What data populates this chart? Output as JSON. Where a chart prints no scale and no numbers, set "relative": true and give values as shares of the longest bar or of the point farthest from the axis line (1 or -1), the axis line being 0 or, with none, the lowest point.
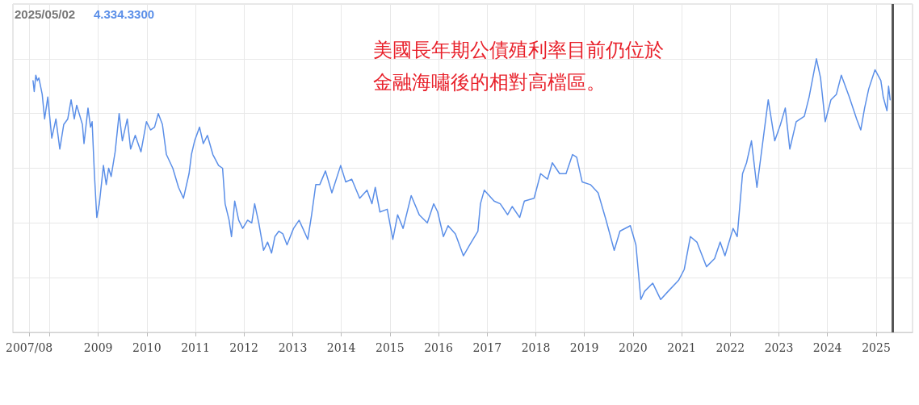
{
  "chart_data": {
    "type": "line",
    "relative": true,
    "grid": true,
    "marker": "none",
    "annotations": [
      "2025/05/02",
      "4.334.3300",
      "美國長年期公債殖利率目前仍位於",
      "金融海嘯後的相對高檔區。"
    ],
    "xlim": [
      "2007-04-01",
      "2025-10-01"
    ],
    "xticks": [
      {
        "value": "2007-08-01",
        "label": "2007/08"
      },
      {
        "value": "2008-01-01",
        "label": null
      },
      {
        "value": "2009-01-01",
        "label": "2009"
      },
      {
        "value": "2010-01-01",
        "label": "2010"
      },
      {
        "value": "2011-01-01",
        "label": "2011"
      },
      {
        "value": "2012-01-01",
        "label": "2012"
      },
      {
        "value": "2013-01-01",
        "label": "2013"
      },
      {
        "value": "2014-01-01",
        "label": "2014"
      },
      {
        "value": "2015-01-01",
        "label": "2015"
      },
      {
        "value": "2016-01-01",
        "label": "2016"
      },
      {
        "value": "2017-01-01",
        "label": "2017"
      },
      {
        "value": "2018-01-01",
        "label": "2018"
      },
      {
        "value": "2019-01-01",
        "label": "2019"
      },
      {
        "value": "2020-01-01",
        "label": "2020"
      },
      {
        "value": "2021-01-01",
        "label": "2021"
      },
      {
        "value": "2022-01-01",
        "label": "2022"
      },
      {
        "value": "2023-01-01",
        "label": "2023"
      },
      {
        "value": "2024-01-01",
        "label": "2024"
      },
      {
        "value": "2025-01-01",
        "label": "2025"
      }
    ],
    "ref_lines": [
      {
        "axis": "x",
        "value": "2025-05-02",
        "color": "#555555"
      }
    ],
    "x": [
      "2007-08-30",
      "2007-09-08",
      "2007-09-20",
      "2007-10-02",
      "2007-10-13",
      "2007-11-07",
      "2007-11-25",
      "2007-12-19",
      "2008-01-18",
      "2008-02-18",
      "2008-03-18",
      "2008-04-17",
      "2008-05-17",
      "2008-06-11",
      "2008-07-05",
      "2008-07-23",
      "2008-09-04",
      "2008-09-16",
      "2008-10-16",
      "2008-11-04",
      "2008-11-16",
      "2008-12-03",
      "2008-12-21",
      "2009-01-09",
      "2009-02-09",
      "2009-03-02",
      "2009-03-20",
      "2009-04-08",
      "2009-05-08",
      "2009-06-07",
      "2009-07-01",
      "2009-08-07",
      "2009-09-01",
      "2009-10-06",
      "2009-11-18",
      "2009-12-29",
      "2010-01-29",
      "2010-02-28",
      "2010-03-28",
      "2010-04-28",
      "2010-05-28",
      "2010-07-15",
      "2010-08-27",
      "2010-10-03",
      "2010-11-14",
      "2010-12-02",
      "2010-12-26",
      "2011-02-01",
      "2011-03-01",
      "2011-04-01",
      "2011-05-12",
      "2011-06-24",
      "2011-07-24",
      "2011-08-12",
      "2011-09-11",
      "2011-09-29",
      "2011-10-23",
      "2011-11-22",
      "2011-12-22",
      "2012-01-28",
      "2012-02-28",
      "2012-03-21",
      "2012-04-21",
      "2012-05-27",
      "2012-06-26",
      "2012-07-26",
      "2012-08-20",
      "2012-09-19",
      "2012-10-19",
      "2012-11-19",
      "2013-01-07",
      "2013-02-18",
      "2013-03-18",
      "2013-04-24",
      "2013-05-23",
      "2013-06-23",
      "2013-07-23",
      "2013-09-04",
      "2013-10-22",
      "2013-12-27",
      "2014-02-03",
      "2014-03-20",
      "2014-05-19",
      "2014-07-13",
      "2014-08-19",
      "2014-09-13",
      "2014-10-18",
      "2014-12-12",
      "2015-01-23",
      "2015-02-28",
      "2015-04-10",
      "2015-06-10",
      "2015-08-09",
      "2015-10-09",
      "2015-11-26",
      "2015-12-26",
      "2016-02-07",
      "2016-03-13",
      "2016-05-07",
      "2016-07-06",
      "2016-08-23",
      "2016-10-23",
      "2016-11-11",
      "2016-12-10",
      "2017-02-22",
      "2017-04-09",
      "2017-06-03",
      "2017-07-08",
      "2017-09-02",
      "2017-10-07",
      "2017-12-19",
      "2018-02-06",
      "2018-03-30",
      "2018-05-05",
      "2018-06-29",
      "2018-08-16",
      "2018-10-04",
      "2018-11-04",
      "2018-12-15",
      "2019-02-15",
      "2019-04-14",
      "2019-06-13",
      "2019-08-13",
      "2019-09-25",
      "2019-12-12",
      "2020-01-23",
      "2020-02-29",
      "2020-03-28",
      "2020-05-28",
      "2020-07-27",
      "2020-09-21",
      "2020-12-08",
      "2021-01-20",
      "2021-03-07",
      "2021-04-25",
      "2021-07-06",
      "2021-09-05",
      "2021-10-17",
      "2021-11-22",
      "2022-01-22",
      "2022-02-22",
      "2022-04-03",
      "2022-05-03",
      "2022-06-09",
      "2022-07-20",
      "2022-10-13",
      "2022-12-01",
      "2023-01-13",
      "2023-02-18",
      "2023-03-24",
      "2023-05-11",
      "2023-07-11",
      "2023-08-16",
      "2023-10-10",
      "2023-11-10",
      "2023-12-15",
      "2024-01-27",
      "2024-03-08",
      "2024-04-14",
      "2024-06-13",
      "2024-08-07",
      "2024-09-07",
      "2024-10-06",
      "2024-11-06",
      "2024-12-23",
      "2025-02-05",
      "2025-02-23",
      "2025-03-23",
      "2025-04-04",
      "2025-04-16"
    ],
    "series": [
      {
        "color": "#5b8fe8",
        "values": [
          0.92,
          0.88,
          0.94,
          0.92,
          0.93,
          0.87,
          0.78,
          0.86,
          0.71,
          0.78,
          0.67,
          0.76,
          0.78,
          0.85,
          0.78,
          0.83,
          0.76,
          0.69,
          0.82,
          0.75,
          0.77,
          0.58,
          0.42,
          0.47,
          0.61,
          0.54,
          0.6,
          0.57,
          0.66,
          0.8,
          0.7,
          0.78,
          0.67,
          0.72,
          0.66,
          0.77,
          0.74,
          0.75,
          0.8,
          0.76,
          0.65,
          0.6,
          0.53,
          0.49,
          0.58,
          0.65,
          0.7,
          0.75,
          0.69,
          0.72,
          0.65,
          0.61,
          0.6,
          0.47,
          0.41,
          0.35,
          0.48,
          0.41,
          0.38,
          0.41,
          0.4,
          0.47,
          0.4,
          0.3,
          0.33,
          0.29,
          0.35,
          0.37,
          0.36,
          0.32,
          0.38,
          0.41,
          0.38,
          0.34,
          0.43,
          0.54,
          0.54,
          0.59,
          0.51,
          0.61,
          0.55,
          0.56,
          0.49,
          0.52,
          0.47,
          0.53,
          0.44,
          0.45,
          0.34,
          0.43,
          0.38,
          0.5,
          0.43,
          0.4,
          0.47,
          0.44,
          0.35,
          0.39,
          0.36,
          0.28,
          0.32,
          0.37,
          0.47,
          0.52,
          0.48,
          0.47,
          0.43,
          0.46,
          0.42,
          0.48,
          0.49,
          0.58,
          0.56,
          0.62,
          0.58,
          0.58,
          0.65,
          0.64,
          0.55,
          0.54,
          0.51,
          0.41,
          0.3,
          0.37,
          0.39,
          0.32,
          0.12,
          0.15,
          0.18,
          0.12,
          0.15,
          0.19,
          0.23,
          0.35,
          0.33,
          0.24,
          0.27,
          0.33,
          0.28,
          0.38,
          0.35,
          0.58,
          0.62,
          0.7,
          0.53,
          0.85,
          0.7,
          0.76,
          0.82,
          0.67,
          0.77,
          0.79,
          0.86,
          1.0,
          0.93,
          0.77,
          0.85,
          0.87,
          0.94,
          0.86,
          0.78,
          0.74,
          0.82,
          0.89,
          0.96,
          0.92,
          0.86,
          0.81,
          0.9,
          0.85
        ]
      }
    ]
  }
}
